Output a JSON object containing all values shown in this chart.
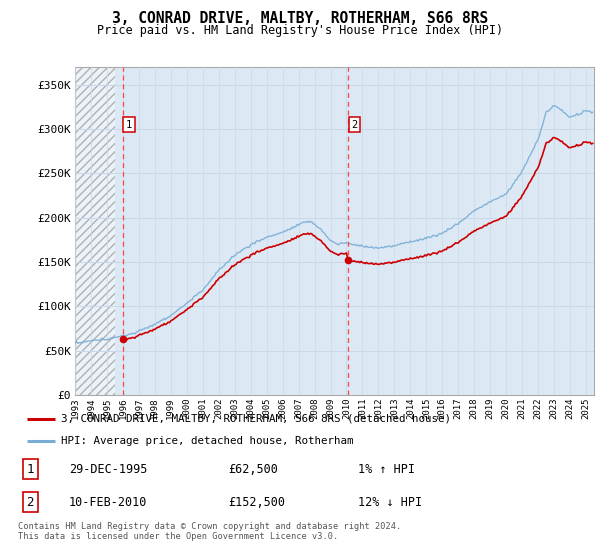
{
  "title": "3, CONRAD DRIVE, MALTBY, ROTHERHAM, S66 8RS",
  "subtitle": "Price paid vs. HM Land Registry's House Price Index (HPI)",
  "legend_line1": "3, CONRAD DRIVE, MALTBY, ROTHERHAM, S66 8RS (detached house)",
  "legend_line2": "HPI: Average price, detached house, Rotherham",
  "table_row1": [
    "1",
    "29-DEC-1995",
    "£62,500",
    "1% ↑ HPI"
  ],
  "table_row2": [
    "2",
    "10-FEB-2010",
    "£152,500",
    "12% ↓ HPI"
  ],
  "footnote": "Contains HM Land Registry data © Crown copyright and database right 2024.\nThis data is licensed under the Open Government Licence v3.0.",
  "ylim": [
    0,
    370000
  ],
  "yticks": [
    0,
    50000,
    100000,
    150000,
    200000,
    250000,
    300000,
    350000
  ],
  "ytick_labels": [
    "£0",
    "£50K",
    "£100K",
    "£150K",
    "£200K",
    "£250K",
    "£300K",
    "£350K"
  ],
  "hatch_color": "#b0b0b0",
  "grid_color": "#c8d8e8",
  "sale1_year": 1995.99,
  "sale1_price": 62500,
  "sale2_year": 2010.11,
  "sale2_price": 152500,
  "property_line_color": "#cc0000",
  "hpi_line_color": "#7aadd4",
  "sale_marker_color": "#cc0000",
  "vline_color": "#ff4444",
  "background_color": "#ffffff",
  "plot_bg_color": "#dce9f5",
  "xmin": 1993.0,
  "xmax": 2025.5,
  "hatch_xend": 1995.5
}
